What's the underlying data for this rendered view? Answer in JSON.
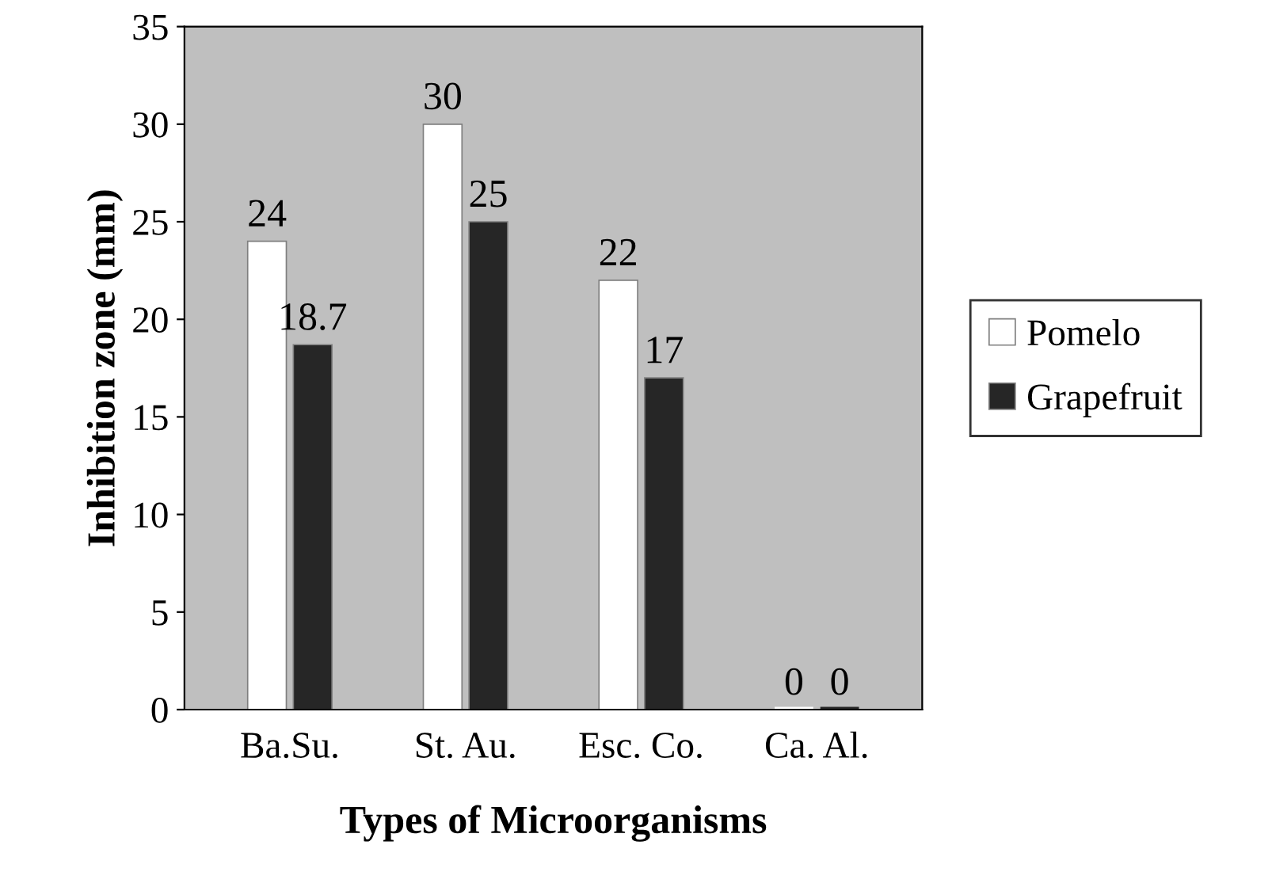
{
  "chart_data": {
    "type": "bar",
    "xlabel": "Types of Microorganisms",
    "ylabel": "Inhibition zone (mm)",
    "categories": [
      "Ba.Su.",
      "St. Au.",
      "Esc. Co.",
      "Ca. Al."
    ],
    "series": [
      {
        "name": "Pomelo",
        "color": "#ffffff",
        "values": [
          24,
          30,
          22,
          0
        ]
      },
      {
        "name": "Grapefruit",
        "color": "#262626",
        "values": [
          18.7,
          25,
          17,
          0
        ]
      }
    ],
    "ylim": [
      0,
      35
    ],
    "yticks": [
      0,
      5,
      10,
      15,
      20,
      25,
      30,
      35
    ],
    "data_labels": true,
    "legend": "right",
    "grid": false
  }
}
